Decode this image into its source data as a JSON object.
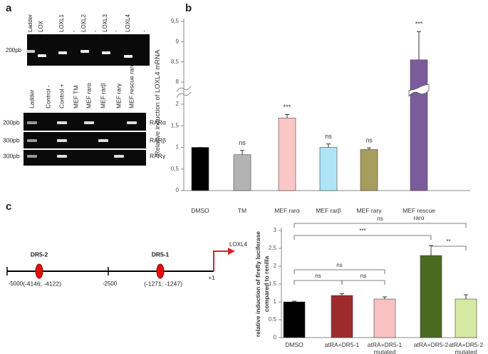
{
  "panel_labels": [
    "a",
    "b",
    "c"
  ],
  "gel": {
    "top": {
      "lanes": [
        "Ladder",
        "LOX",
        "LOXL1",
        "-",
        "LOXL2",
        "-",
        "LOXL3",
        "-",
        "LOXL4",
        "-"
      ],
      "marker": "200pb"
    },
    "bottom": {
      "lanes": [
        "Ladder",
        "Control -",
        "Control +",
        "MEF  TM",
        "MEF  rarα",
        "MEF  rarβ",
        "MEF  rarγ",
        "MEF rescue rarα"
      ],
      "markers": [
        "200pb",
        "300pb",
        "300pb"
      ],
      "genes": [
        "RARα",
        "RARβ",
        "RARγ"
      ]
    }
  },
  "diagram": {
    "elements": [
      {
        "name": "DR5-2",
        "range": "(-4146; -4122)"
      },
      {
        "name": "DR5-1",
        "range": "(-1271; -1247)"
      }
    ],
    "positions": [
      "-5000",
      "-2500",
      "+1"
    ],
    "gene": "LOXL4"
  },
  "chart_data": [
    {
      "type": "bar",
      "ylabel": "Relative  induction of LOXL4  mRNA",
      "categories": [
        "DMSO",
        "TM",
        "MEF rarα",
        "MEF rarβ",
        "MEF rarγ",
        "MEF rescue rarα"
      ],
      "values": [
        1,
        0.83,
        1.68,
        1,
        0.95,
        8.55
      ],
      "errors": [
        0,
        0.1,
        0.08,
        0.08,
        0.04,
        0.7
      ],
      "colors": [
        "#000000",
        "#b3b3b3",
        "#fac6c6",
        "#aee4f6",
        "#a59c5e",
        "#7b5c9b"
      ],
      "annotations": [
        null,
        "ns",
        "***",
        "ns",
        "ns",
        "***"
      ],
      "ylim": [
        0,
        9.5
      ],
      "ybreak": [
        2,
        8
      ],
      "yticks": [
        0,
        {
          "value": 0.5,
          "label": "0,5"
        },
        1,
        {
          "value": 1.5,
          "label": "1,5"
        },
        2,
        8,
        {
          "value": 8.5,
          "label": "8,5"
        },
        9,
        {
          "value": 9.5,
          "label": "9,5"
        }
      ]
    },
    {
      "type": "bar",
      "ylabel": "relative induction of firefly luciferase compared to renilla",
      "categories": [
        "DMSO",
        "atRA+DR5-1",
        "atRA+DR5-1 mutated",
        "atRA+DR5-2",
        "atRA+DR5-2 mutated"
      ],
      "values": [
        1,
        1.18,
        1.08,
        2.3,
        1.08
      ],
      "errors": [
        0.02,
        0.05,
        0.06,
        0.28,
        0.12
      ],
      "colors": [
        "#000000",
        "#9e2b2b",
        "#f8c2c2",
        "#4a6a1f",
        "#d5e9a3"
      ],
      "comparisons": [
        "ns",
        "***",
        "**",
        "ns",
        "ns",
        "ns"
      ],
      "ylim": [
        0,
        3
      ],
      "yticks": [
        0,
        0.5,
        1,
        1.5,
        2,
        2.5,
        3
      ]
    }
  ]
}
